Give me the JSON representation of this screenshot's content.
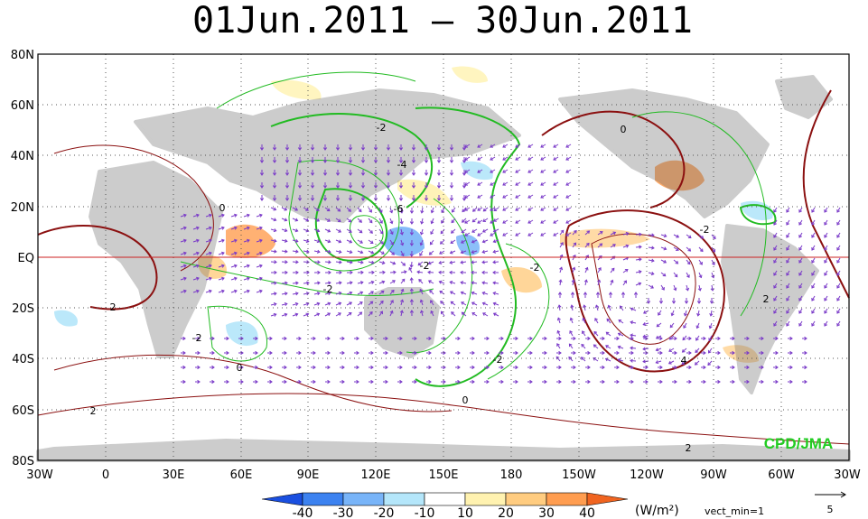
{
  "title": "01Jun.2011 – 30Jun.2011",
  "credit": "CPD/JMA",
  "lat_labels": [
    "80N",
    "60N",
    "40N",
    "20N",
    "EQ",
    "20S",
    "40S",
    "60S",
    "80S"
  ],
  "lon_labels": [
    "30W",
    "0",
    "30E",
    "60E",
    "90E",
    "120E",
    "150E",
    "180",
    "150W",
    "120W",
    "90W",
    "60W",
    "30W"
  ],
  "colorbar": {
    "ticks": [
      "-40",
      "-30",
      "-20",
      "-10",
      "10",
      "20",
      "30",
      "40"
    ],
    "colors": [
      "#1a4fe0",
      "#3c82f0",
      "#78b4f8",
      "#b4e6fa",
      "#ffffff",
      "#fff2b0",
      "#ffcc80",
      "#ff9d50",
      "#f06420"
    ],
    "units": "(W/m²)"
  },
  "vector_note": "vect_min=1",
  "reference_vector_value": "5",
  "contour_labels": [
    "-2",
    "-4",
    "-6",
    "0",
    "-2",
    "2",
    "0",
    "-2",
    "0",
    "4",
    "-2",
    "2",
    "2",
    "0",
    "2",
    "-2",
    "-2",
    "-2"
  ],
  "style": {
    "land": "#6e6e6e",
    "positive_contour": "#8b1010",
    "negative_contour": "#22bb22",
    "vector": "#7a3ac8",
    "grid": "#555555",
    "equator": "#cc2222"
  }
}
